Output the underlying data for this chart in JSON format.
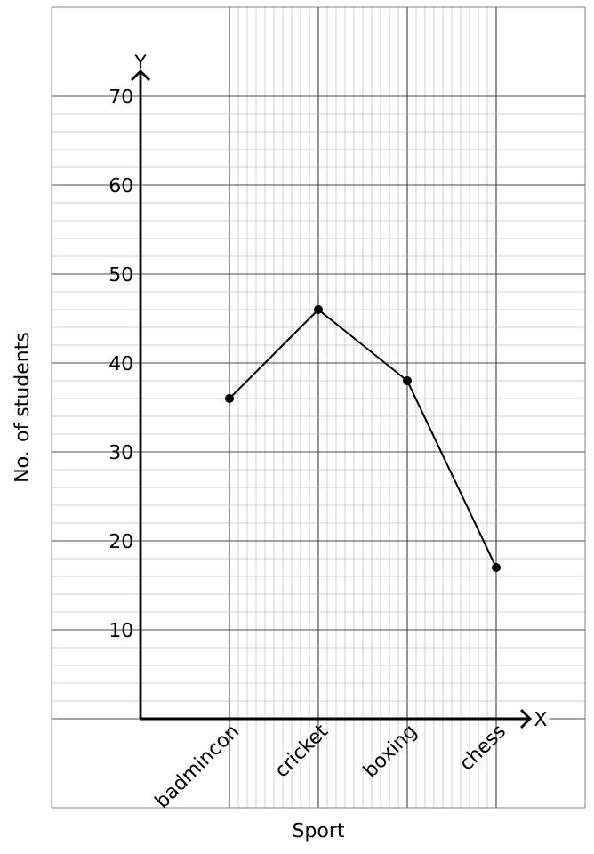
{
  "chart_data": {
    "type": "line",
    "xlabel": "Sport",
    "ylabel": "No. of students",
    "categories": [
      "badmincon",
      "cricket",
      "boxing",
      "chess"
    ],
    "values": [
      36,
      46,
      38,
      17
    ],
    "color": "#000000",
    "marker": "circle",
    "line_style": "solid",
    "ylim": [
      -10,
      80
    ],
    "yticks": [
      {
        "value": 0,
        "label": null
      },
      10,
      20,
      30,
      40,
      50,
      60,
      70
    ],
    "grid": true,
    "annotations": [
      "Y",
      "X"
    ]
  }
}
